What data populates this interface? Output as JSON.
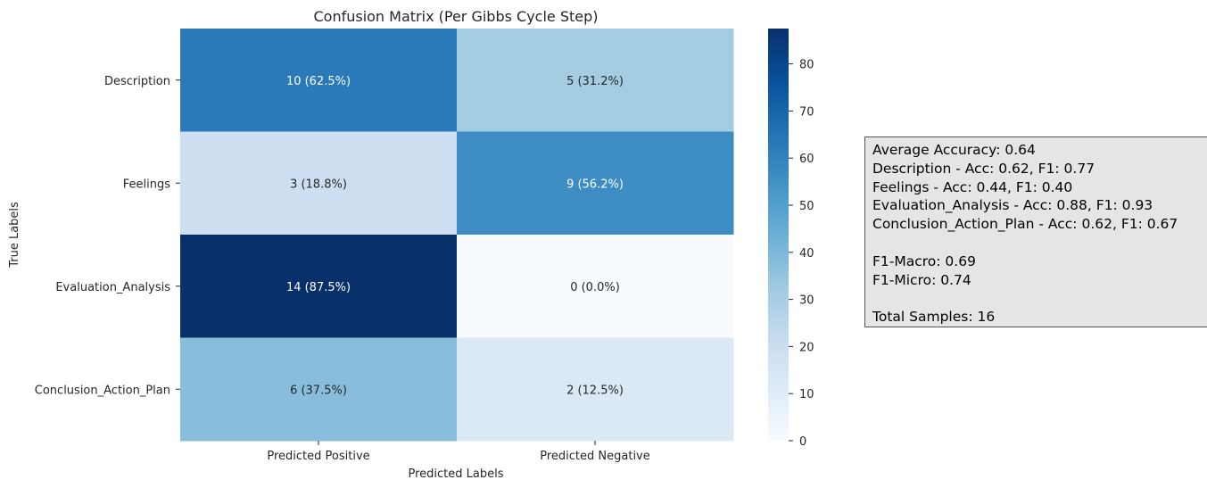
{
  "chart_data": {
    "type": "heatmap",
    "title": "Confusion Matrix (Per Gibbs Cycle Step)",
    "xlabel": "Predicted Labels",
    "ylabel": "True Labels",
    "columns": [
      "Predicted Positive",
      "Predicted Negative"
    ],
    "rows": [
      "Description",
      "Feelings",
      "Evaluation_Analysis",
      "Conclusion_Action_Plan"
    ],
    "percent_values": [
      [
        62.5,
        31.2
      ],
      [
        18.8,
        56.2
      ],
      [
        87.5,
        0.0
      ],
      [
        37.5,
        12.5
      ]
    ],
    "cell_labels": [
      [
        "10 (62.5%)",
        "5 (31.2%)"
      ],
      [
        "3 (18.8%)",
        "9 (56.2%)"
      ],
      [
        "14 (87.5%)",
        "0 (0.0%)"
      ],
      [
        "6 (37.5%)",
        "2 (12.5%)"
      ]
    ],
    "colorbar": {
      "range": [
        0,
        87.5
      ],
      "ticks": [
        "0",
        "10",
        "20",
        "30",
        "40",
        "50",
        "60",
        "70",
        "80"
      ],
      "colormap": "Blues"
    }
  },
  "stats_box": {
    "lines": [
      "Average Accuracy: 0.64",
      "Description - Acc: 0.62, F1: 0.77",
      "Feelings - Acc: 0.44, F1: 0.40",
      "Evaluation_Analysis - Acc: 0.88, F1: 0.93",
      "Conclusion_Action_Plan - Acc: 0.62, F1: 0.67",
      "",
      "F1-Macro: 0.69",
      "F1-Micro: 0.74",
      "",
      "Total Samples: 16"
    ]
  }
}
